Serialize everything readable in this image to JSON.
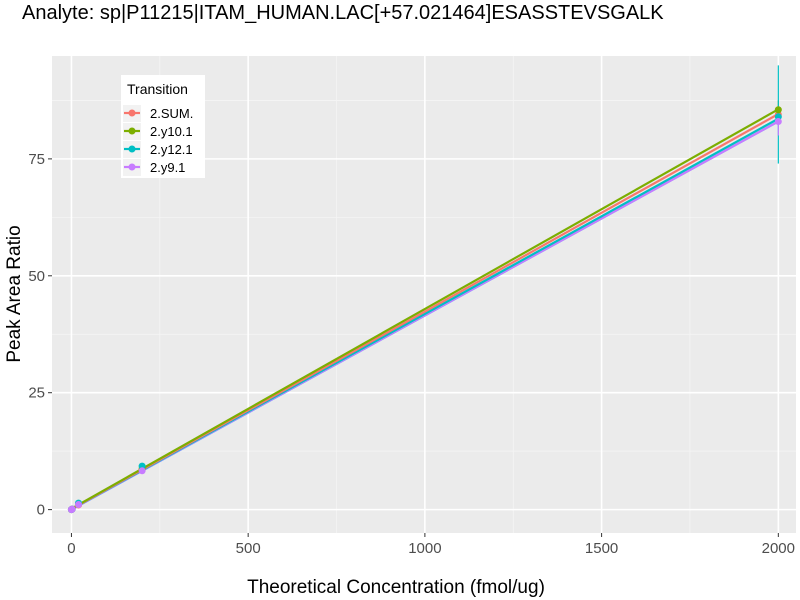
{
  "chart_data": {
    "type": "line",
    "title": "Analyte: sp|P11215|ITAM_HUMAN.LAC[+57.021464]ESASSTEVSGALK",
    "xlabel": "Theoretical Concentration (fmol/ug)",
    "ylabel": "Peak Area Ratio",
    "xlim": [
      -55,
      2050
    ],
    "ylim": [
      -5,
      97
    ],
    "x_ticks": [
      0,
      500,
      1000,
      1500,
      2000
    ],
    "x_tick_labels": [
      "0",
      "500",
      "1000",
      "1500",
      "2000"
    ],
    "y_ticks": [
      0,
      25,
      50,
      75
    ],
    "y_tick_labels": [
      "0",
      "25",
      "50",
      "75"
    ],
    "grid": true,
    "legend": {
      "title": "Transition",
      "position": "top-left"
    },
    "series": [
      {
        "name": "2.SUM.",
        "color": "#F8766D",
        "points": [
          [
            0,
            0.0
          ],
          [
            2,
            0.1
          ],
          [
            20,
            1.0
          ],
          [
            200,
            8.5
          ],
          [
            2000,
            84.5
          ]
        ],
        "fit": [
          [
            0,
            0.1
          ],
          [
            2000,
            84.6
          ]
        ],
        "errorbars": []
      },
      {
        "name": "2.y10.1",
        "color": "#7CAE00",
        "points": [
          [
            0,
            0.0
          ],
          [
            2,
            0.1
          ],
          [
            20,
            1.2
          ],
          [
            200,
            8.8
          ],
          [
            2000,
            85.5
          ]
        ],
        "fit": [
          [
            0,
            0.2
          ],
          [
            2000,
            85.6
          ]
        ],
        "errorbars": [
          [
            2000,
            83.5,
            87.5
          ]
        ]
      },
      {
        "name": "2.y12.1",
        "color": "#00BFC4",
        "points": [
          [
            0,
            0.0
          ],
          [
            2,
            0.1
          ],
          [
            20,
            1.4
          ],
          [
            200,
            9.3
          ],
          [
            2000,
            84.0
          ]
        ],
        "fit": [
          [
            0,
            0.1
          ],
          [
            2000,
            83.6
          ]
        ],
        "errorbars": [
          [
            2000,
            74.0,
            95.0
          ]
        ]
      },
      {
        "name": "2.y9.1",
        "color": "#C77CFF",
        "points": [
          [
            0,
            0.0
          ],
          [
            2,
            0.1
          ],
          [
            20,
            1.1
          ],
          [
            200,
            8.3
          ],
          [
            2000,
            83.0
          ]
        ],
        "fit": [
          [
            0,
            0.1
          ],
          [
            2000,
            83.0
          ]
        ],
        "errorbars": [
          [
            2000,
            80.0,
            86.0
          ]
        ]
      }
    ],
    "extra_line": {
      "color": "#619CFF",
      "fit": [
        [
          0,
          0.0
        ],
        [
          2000,
          83.0
        ]
      ]
    }
  }
}
